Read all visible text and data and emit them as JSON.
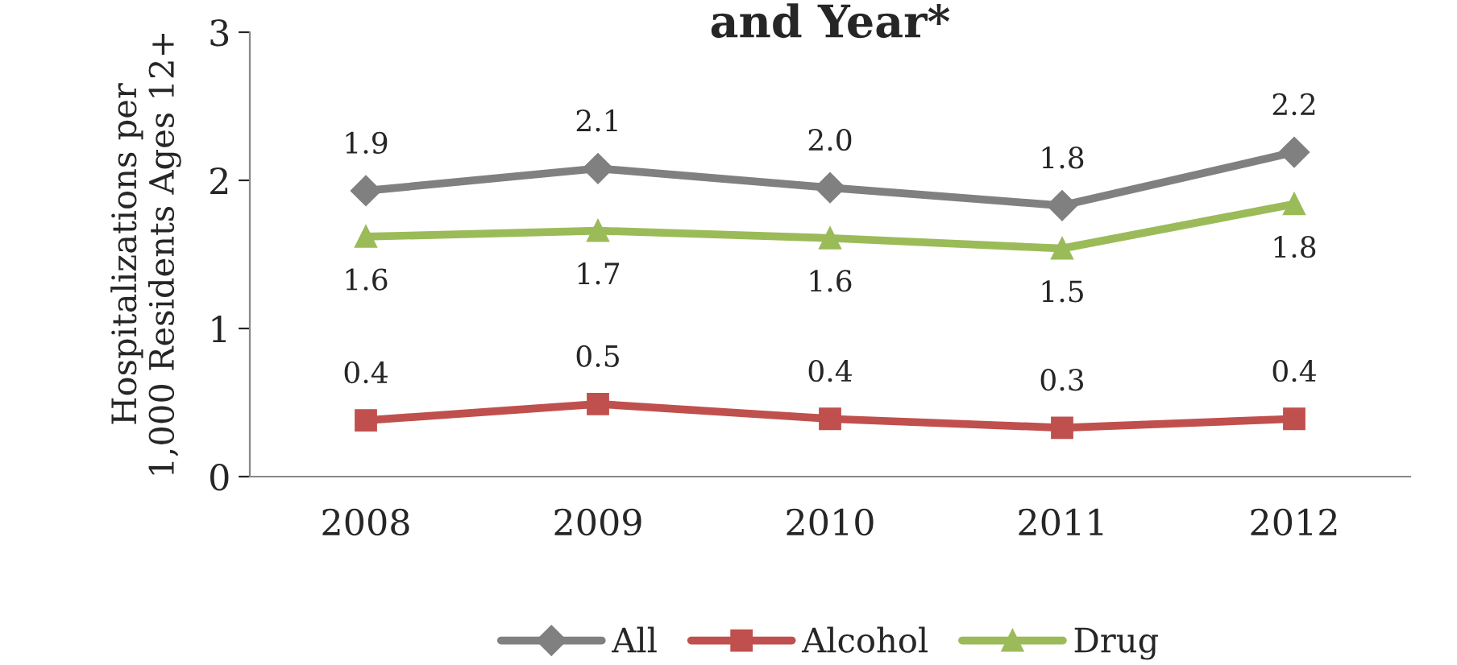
{
  "chart_data": {
    "type": "line",
    "title": "and Year*",
    "ylabel": "Hospitalizations per\n1,000 Residents Ages 12+",
    "categories": [
      "2008",
      "2009",
      "2010",
      "2011",
      "2012"
    ],
    "series": [
      {
        "name": "All",
        "color": "#808080",
        "marker": "diamond",
        "values": [
          1.93,
          2.08,
          1.95,
          1.83,
          2.19
        ],
        "value_labels": [
          "1.9",
          "2.1",
          "2.0",
          "1.8",
          "2.2"
        ]
      },
      {
        "name": "Alcohol",
        "color": "#c0504d",
        "marker": "square",
        "values": [
          0.38,
          0.49,
          0.39,
          0.33,
          0.39
        ],
        "value_labels": [
          "0.4",
          "0.5",
          "0.4",
          "0.3",
          "0.4"
        ]
      },
      {
        "name": "Drug",
        "color": "#9bbb59",
        "marker": "triangle",
        "values": [
          1.62,
          1.66,
          1.61,
          1.54,
          1.84
        ],
        "value_labels": [
          "1.6",
          "1.7",
          "1.6",
          "1.5",
          "1.8"
        ]
      }
    ],
    "ylim": [
      0,
      3
    ],
    "yticks": [
      0,
      1,
      2,
      3
    ],
    "grid": false,
    "legend": "bottom"
  }
}
